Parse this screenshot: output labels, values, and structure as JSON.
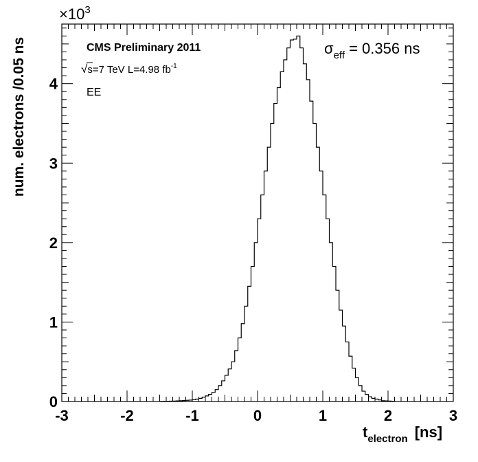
{
  "chart_data": {
    "type": "bar",
    "style": "step-histogram",
    "xlabel_main": "t",
    "xlabel_sub": "electron",
    "xlabel_unit": "[ns]",
    "ylabel": "num. electrons /0.05 ns",
    "y_multiplier_base": "×10",
    "y_multiplier_exp": "3",
    "xlim": [
      -3,
      3
    ],
    "ylim": [
      0,
      4.75
    ],
    "x_ticks": [
      "-3",
      "-2",
      "-1",
      "0",
      "1",
      "2",
      "3"
    ],
    "y_ticks": [
      "0",
      "1",
      "2",
      "3",
      "4"
    ],
    "bin_width": 0.05,
    "bin_edges_start": -1.5,
    "values": [
      0.002,
      0.003,
      0.004,
      0.005,
      0.006,
      0.008,
      0.01,
      0.012,
      0.015,
      0.018,
      0.022,
      0.03,
      0.04,
      0.055,
      0.07,
      0.09,
      0.115,
      0.15,
      0.2,
      0.26,
      0.33,
      0.41,
      0.5,
      0.64,
      0.8,
      0.98,
      1.2,
      1.45,
      1.7,
      2.0,
      2.3,
      2.6,
      2.9,
      3.2,
      3.5,
      3.75,
      3.95,
      4.15,
      4.3,
      4.45,
      4.55,
      4.56,
      4.6,
      4.45,
      4.25,
      4.05,
      3.78,
      3.5,
      3.2,
      2.9,
      2.6,
      2.3,
      2.0,
      1.7,
      1.4,
      1.15,
      0.95,
      0.75,
      0.57,
      0.42,
      0.3,
      0.2,
      0.13,
      0.09,
      0.06,
      0.04,
      0.03,
      0.02,
      0.01,
      0.008,
      0.006,
      0.004
    ],
    "grid": false,
    "legend": "none"
  },
  "annotations": {
    "experiment": "CMS Preliminary 2011",
    "sqrt_symbol": "√",
    "energy_text": "s=7 TeV   L=4.98 fb",
    "lumi_exp": "-1",
    "region": "EE",
    "sigma_symbol": "σ",
    "sigma_sub": "eff",
    "sigma_text": " = 0.356  ns"
  }
}
